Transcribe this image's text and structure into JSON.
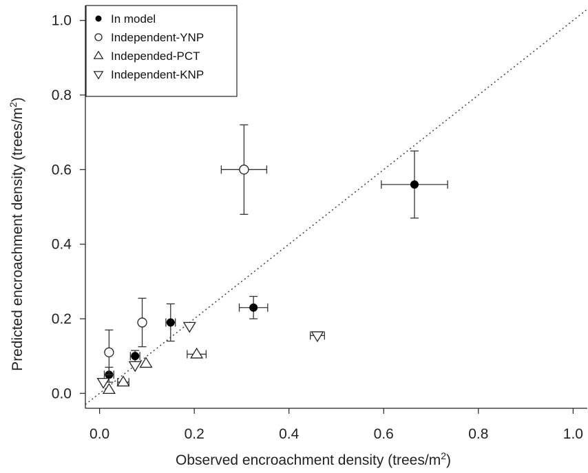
{
  "chart_data": {
    "type": "scatter",
    "xlabel": "Observed  encroachment density (trees/m",
    "xlabel_sup": "2",
    "xlabel_close": ")",
    "ylabel": "Predicted encroachment density (trees/m",
    "ylabel_sup": "2",
    "ylabel_close": ")",
    "xlim": [
      -0.03,
      1.03
    ],
    "ylim": [
      -0.04,
      1.04
    ],
    "x_ticks": [
      "0.0",
      "0.2",
      "0.4",
      "0.6",
      "0.8",
      "1.0"
    ],
    "x_tick_values": [
      0.0,
      0.2,
      0.4,
      0.6,
      0.8,
      1.0
    ],
    "y_ticks": [
      "0.0",
      "0.2",
      "0.4",
      "0.6",
      "0.8",
      "1.0"
    ],
    "y_tick_values": [
      0.0,
      0.2,
      0.4,
      0.6,
      0.8,
      1.0
    ],
    "reference_line": "1:1 dotted",
    "legend_position": "top-left",
    "series": [
      {
        "name": "In model",
        "marker": "filled-circle",
        "points": [
          {
            "x": 0.02,
            "y": 0.05,
            "xerr": 0.01,
            "yerr": 0.02
          },
          {
            "x": 0.075,
            "y": 0.1,
            "xerr": 0.01,
            "yerr": 0.015
          },
          {
            "x": 0.15,
            "y": 0.19,
            "xerr": 0.01,
            "yerr": 0.05
          },
          {
            "x": 0.325,
            "y": 0.23,
            "xerr": 0.03,
            "yerr": 0.03
          },
          {
            "x": 0.665,
            "y": 0.56,
            "xerr": 0.07,
            "yerr": 0.09
          }
        ]
      },
      {
        "name": "Independent-YNP",
        "marker": "open-circle",
        "points": [
          {
            "x": 0.02,
            "y": 0.11,
            "xerr": 0,
            "yerr": 0.06
          },
          {
            "x": 0.09,
            "y": 0.19,
            "xerr": 0,
            "yerr": 0.065
          },
          {
            "x": 0.305,
            "y": 0.6,
            "xerr": 0.048,
            "yerr": 0.12
          }
        ]
      },
      {
        "name": "Independed-PCT",
        "marker": "up-triangle",
        "points": [
          {
            "x": 0.02,
            "y": 0.01,
            "xerr": 0,
            "yerr": 0
          },
          {
            "x": 0.05,
            "y": 0.03,
            "xerr": 0.012,
            "yerr": 0
          },
          {
            "x": 0.098,
            "y": 0.08,
            "xerr": 0,
            "yerr": 0
          },
          {
            "x": 0.205,
            "y": 0.105,
            "xerr": 0.02,
            "yerr": 0
          }
        ]
      },
      {
        "name": "Independent-KNP",
        "marker": "down-triangle",
        "points": [
          {
            "x": 0.008,
            "y": 0.03,
            "xerr": 0,
            "yerr": 0
          },
          {
            "x": 0.075,
            "y": 0.075,
            "xerr": 0,
            "yerr": 0
          },
          {
            "x": 0.19,
            "y": 0.18,
            "xerr": 0,
            "yerr": 0
          },
          {
            "x": 0.46,
            "y": 0.155,
            "xerr": 0.015,
            "yerr": 0
          }
        ]
      }
    ]
  }
}
